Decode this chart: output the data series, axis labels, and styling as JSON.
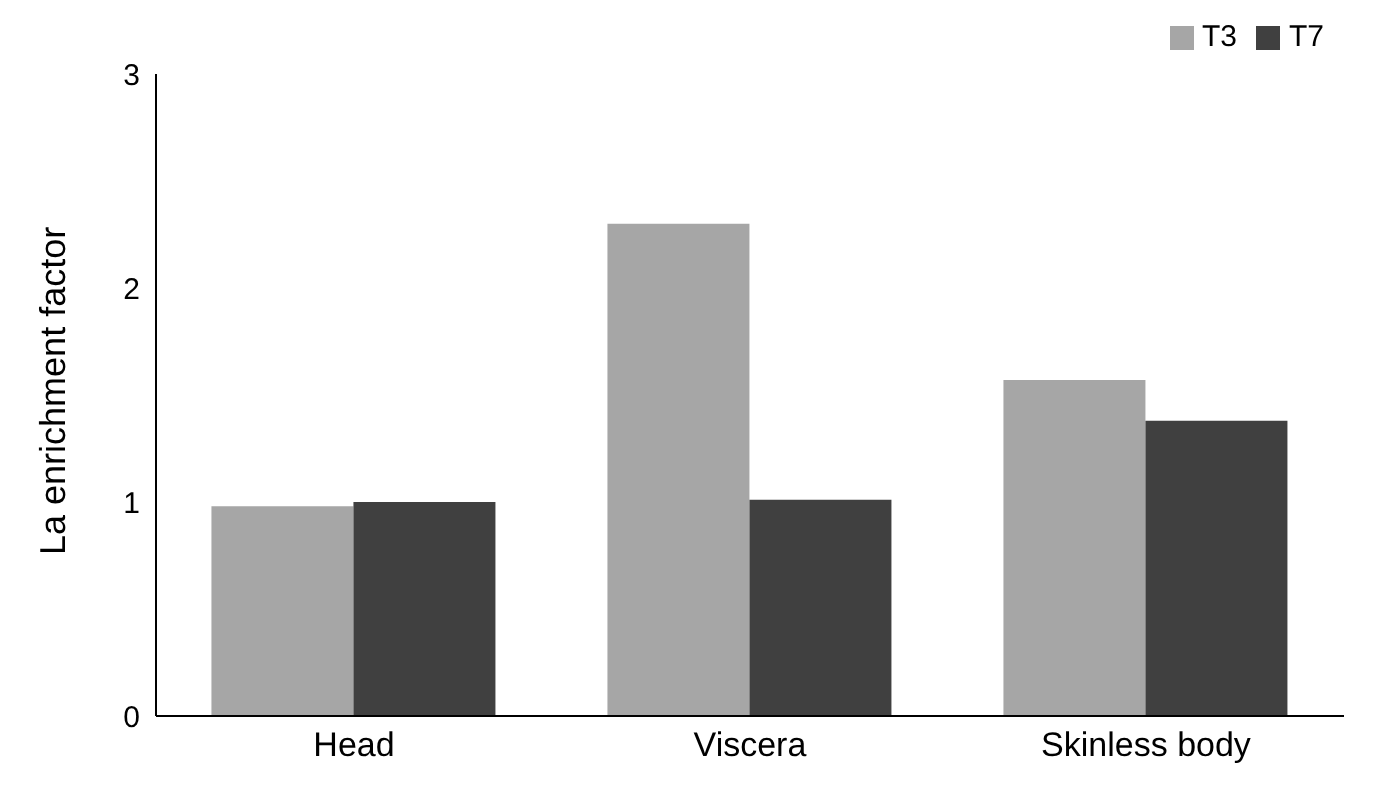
{
  "chart_data": {
    "type": "bar",
    "ylabel": "La enrichment factor",
    "categories": [
      "Head",
      "Viscera",
      "Skinless body"
    ],
    "series": [
      {
        "name": "T3",
        "color": "#a6a6a6",
        "values": [
          0.98,
          2.3,
          1.57
        ]
      },
      {
        "name": "T7",
        "color": "#404040",
        "values": [
          1.0,
          1.01,
          1.38
        ]
      }
    ],
    "ylim": [
      0,
      3
    ],
    "yticks": [
      0,
      1,
      2,
      3
    ],
    "grid": false,
    "legend": "top right"
  }
}
